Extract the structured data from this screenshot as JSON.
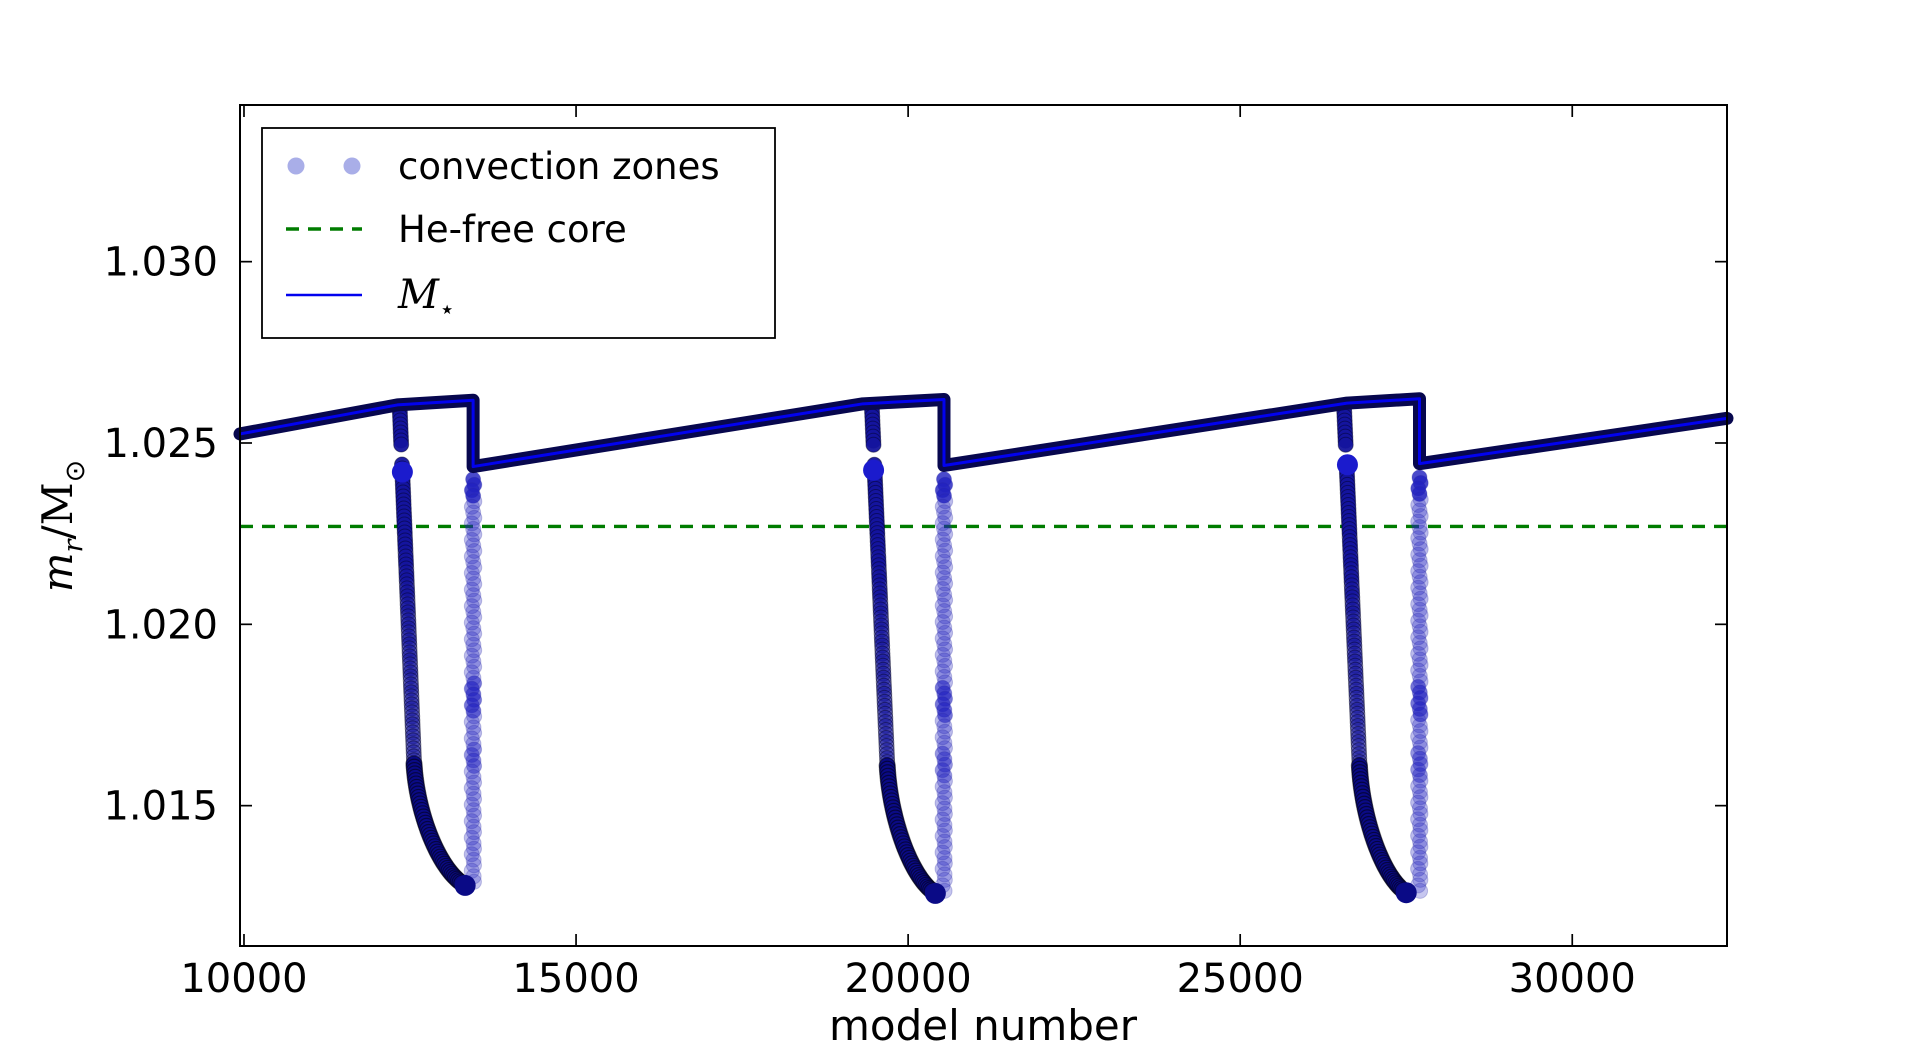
{
  "chart_data": {
    "type": "scatter+line",
    "title": "",
    "xlabel": "model number",
    "ylabel_parts": {
      "m": "m",
      "sub_r": "r",
      "slash_M": "/M",
      "sun": "⊙"
    },
    "xlim": [
      9940,
      32330
    ],
    "ylim": [
      1.01113,
      1.03432
    ],
    "xticks": [
      {
        "v": 10000,
        "label": "10000"
      },
      {
        "v": 15000,
        "label": "15000"
      },
      {
        "v": 20000,
        "label": "20000"
      },
      {
        "v": 25000,
        "label": "25000"
      },
      {
        "v": 30000,
        "label": "30000"
      }
    ],
    "yticks": [
      {
        "v": 1.015,
        "label": "1.015"
      },
      {
        "v": 1.02,
        "label": "1.020"
      },
      {
        "v": 1.025,
        "label": "1.025"
      },
      {
        "v": 1.03,
        "label": "1.030"
      }
    ],
    "he_free_core": 1.0227,
    "mstar_line": [
      [
        9940,
        1.02525
      ],
      [
        12310,
        1.02605
      ],
      [
        13450,
        1.02618
      ],
      [
        13450,
        1.02435
      ],
      [
        19320,
        1.02608
      ],
      [
        20540,
        1.0262
      ],
      [
        20540,
        1.02438
      ],
      [
        26610,
        1.0261
      ],
      [
        27700,
        1.02622
      ],
      [
        27700,
        1.02443
      ],
      [
        32330,
        1.02568
      ]
    ],
    "dips": [
      {
        "left": {
          "x_top": 12345,
          "x_bottom": 12560,
          "v_top": 1.02595,
          "v_bottom": 1.01625
        },
        "gap_v": [
          1.02445,
          1.02485
        ],
        "dot": {
          "x": 12385,
          "v": 1.0242
        },
        "toe": {
          "x_start": 12560,
          "v_start": 1.01615,
          "x_end": 13330,
          "v_end": 1.0128
        },
        "right": {
          "x": 13450,
          "v_top": 1.024,
          "v_bottom": 1.0129
        }
      },
      {
        "left": {
          "x_top": 19455,
          "x_bottom": 19685,
          "v_top": 1.02595,
          "v_bottom": 1.0162
        },
        "gap_v": [
          1.02445,
          1.02485
        ],
        "dot": {
          "x": 19480,
          "v": 1.02425
        },
        "toe": {
          "x_start": 19685,
          "v_start": 1.0161,
          "x_end": 20410,
          "v_end": 1.01258
        },
        "right": {
          "x": 20540,
          "v_top": 1.024,
          "v_bottom": 1.01265
        }
      },
      {
        "left": {
          "x_top": 26565,
          "x_bottom": 26795,
          "v_top": 1.02595,
          "v_bottom": 1.0162
        },
        "gap_v": [
          1.02445,
          1.02485
        ],
        "dot": {
          "x": 26615,
          "v": 1.0244
        },
        "toe": {
          "x_start": 26795,
          "v_start": 1.0161,
          "x_end": 27500,
          "v_end": 1.0126
        },
        "right": {
          "x": 27700,
          "v_top": 1.02405,
          "v_bottom": 1.01265
        }
      }
    ],
    "colors": {
      "scatter_light": "#2222c0",
      "scatter_dark": "#14149e",
      "toe": "#0a0a86",
      "band": "#07074e",
      "blue_line": "#0202ee",
      "green": "#007c00",
      "legend_dot": "#a9aee8",
      "axis": "#000000"
    },
    "legend": {
      "entries": [
        {
          "label": "convection zones"
        },
        {
          "label": "He-free core"
        },
        {
          "label_main": "M",
          "label_sub": "⋆"
        }
      ]
    }
  }
}
